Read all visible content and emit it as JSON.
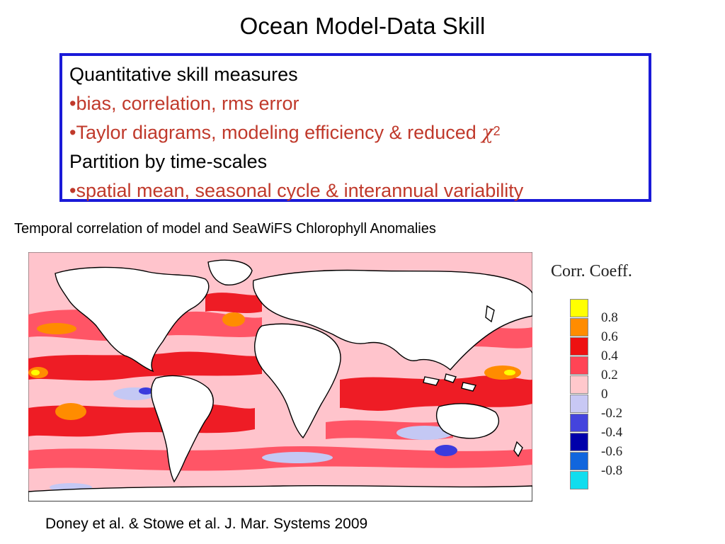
{
  "slide": {
    "title": "Ocean Model-Data Skill"
  },
  "skill_box": {
    "lines": [
      {
        "text": "Quantitative skill measures",
        "color": "#000000"
      },
      {
        "text": "•bias, correlation, rms error",
        "color": "#c0392b"
      },
      {
        "text": "•Taylor diagrams, modeling efficiency & reduced ",
        "color": "#c0392b",
        "symbol": "χ",
        "sup": "2"
      },
      {
        "text": "Partition by time-scales",
        "color": "#000000"
      },
      {
        "text": "•spatial mean, seasonal cycle & interannual variability",
        "color": "#c0392b"
      }
    ],
    "border_color": "#1a1ad8"
  },
  "figure": {
    "caption": "Temporal correlation of model and SeaWiFS Chlorophyll Anomalies",
    "legend_title": "Corr. Coeff.",
    "legend": [
      {
        "label": "0.8",
        "color": "#ffff00"
      },
      {
        "label": "0.6",
        "color": "#ff8c00"
      },
      {
        "label": "0.4",
        "color": "#ee1111"
      },
      {
        "label": "0.2",
        "color": "#ff4455"
      },
      {
        "label": "0",
        "color": "#ffc8cc"
      },
      {
        "label": "-0.2",
        "color": "#c8c8f4"
      },
      {
        "label": "-0.4",
        "color": "#4444dd"
      },
      {
        "label": "-0.6",
        "color": "#0000aa"
      },
      {
        "label": "-0.8",
        "color": "#1166dd"
      },
      {
        "label": "",
        "color": "#11ddee"
      }
    ],
    "map_colors": {
      "ocean": "#ffc4cc",
      "land": "#ffffff",
      "high": "#ee1c25",
      "positive": "#ff5566",
      "peak": "#ff8c00",
      "max": "#ffff00",
      "negative": "#c4c8f4",
      "strong_negative": "#3b3bdd"
    }
  },
  "citation": "Doney et al. & Stowe et al. J. Mar. Systems 2009"
}
